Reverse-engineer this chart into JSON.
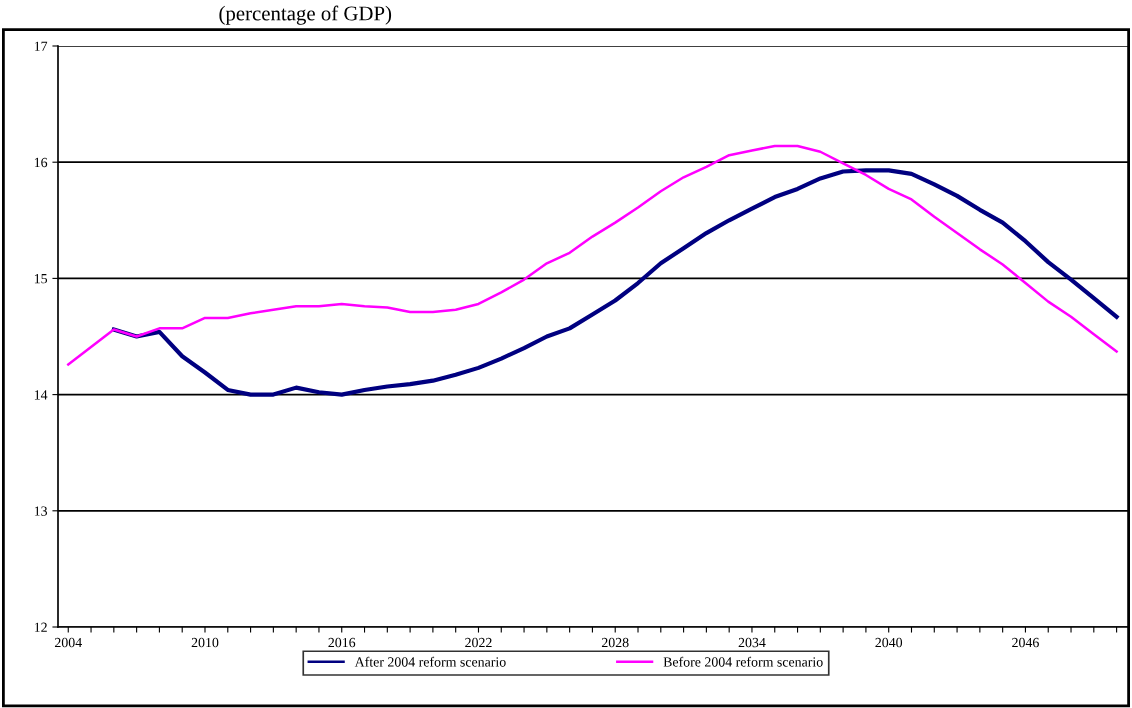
{
  "chart_data": {
    "type": "line",
    "title": "(percentage of GDP)",
    "categories": [
      "2004",
      null,
      null,
      null,
      null,
      null,
      "2010",
      null,
      null,
      null,
      null,
      null,
      "2016",
      null,
      null,
      null,
      null,
      null,
      "2022",
      null,
      null,
      null,
      null,
      null,
      "2028",
      null,
      null,
      null,
      null,
      null,
      "2034",
      null,
      null,
      null,
      null,
      null,
      "2040",
      null,
      null,
      null,
      null,
      null,
      "2046",
      null,
      null,
      null,
      null
    ],
    "series": [
      {
        "name": "After 2004 reform scenario",
        "color": "#000080",
        "values": [
          null,
          null,
          14.56,
          14.5,
          14.54,
          14.33,
          14.19,
          14.04,
          14.0,
          14.0,
          14.06,
          14.02,
          14.0,
          14.04,
          14.07,
          14.09,
          14.12,
          14.17,
          14.23,
          14.31,
          14.4,
          14.5,
          14.57,
          14.69,
          14.81,
          14.96,
          15.13,
          15.26,
          15.39,
          15.5,
          15.6,
          15.7,
          15.77,
          15.86,
          15.92,
          15.93,
          15.93,
          15.9,
          15.81,
          15.71,
          15.59,
          15.48,
          15.32,
          15.14,
          14.99,
          14.83,
          14.67
        ]
      },
      {
        "name": "Before 2004 reform scenario",
        "color": "#ff00ff",
        "values": [
          14.26,
          14.41,
          14.56,
          14.5,
          14.57,
          14.57,
          14.66,
          14.66,
          14.7,
          14.73,
          14.76,
          14.76,
          14.78,
          14.76,
          14.75,
          14.71,
          14.71,
          14.73,
          14.78,
          14.88,
          14.99,
          15.13,
          15.22,
          15.36,
          15.48,
          15.61,
          15.75,
          15.87,
          15.96,
          16.06,
          16.1,
          16.14,
          16.14,
          16.09,
          15.99,
          15.89,
          15.77,
          15.68,
          15.53,
          15.39,
          15.25,
          15.12,
          14.96,
          14.8,
          14.67,
          14.52,
          14.37
        ]
      }
    ],
    "ylim": [
      12,
      17
    ],
    "yticks": [
      12,
      13,
      14,
      15,
      16,
      17
    ],
    "grid": "y",
    "legend": "bottom",
    "marker": "none",
    "line_style": "solid"
  }
}
